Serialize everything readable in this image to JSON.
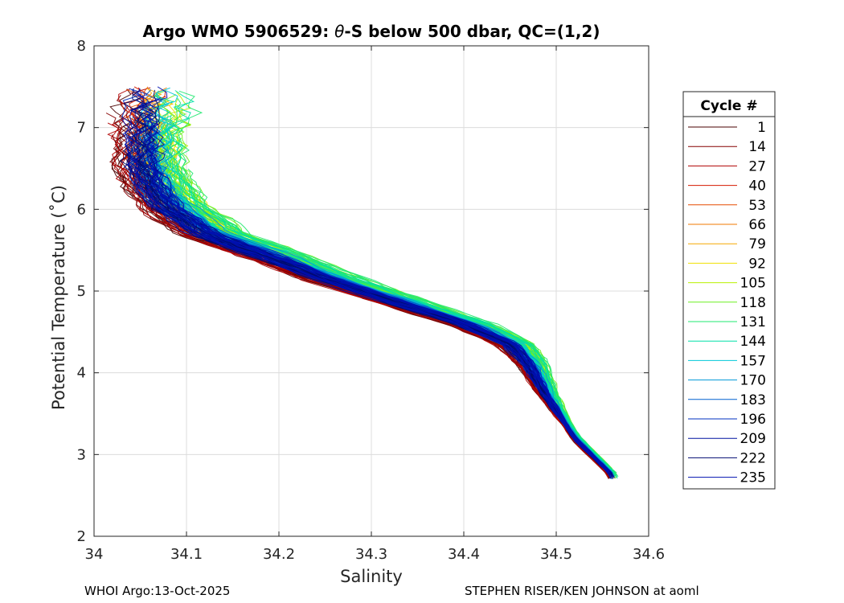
{
  "chart_data": {
    "type": "line",
    "title_prefix": "Argo WMO 5906529: ",
    "title_theta": "θ",
    "title_suffix": "-S below 500 dbar,  QC=(1,2)",
    "xlabel": "Salinity",
    "ylabel": "Potential Temperature (˚C)",
    "xlim": [
      34.0,
      34.6
    ],
    "ylim": [
      2,
      8
    ],
    "xticks": [
      34,
      34.1,
      34.2,
      34.3,
      34.4,
      34.5,
      34.6
    ],
    "xtick_labels": [
      "34",
      "34.1",
      "34.2",
      "34.3",
      "34.4",
      "34.5",
      "34.6"
    ],
    "yticks": [
      2,
      3,
      4,
      5,
      6,
      7,
      8
    ],
    "ytick_labels": [
      "2",
      "3",
      "4",
      "5",
      "6",
      "7",
      "8"
    ],
    "grid": true,
    "legend_title": "Cycle #",
    "legend_position": "right-outside",
    "legend": [
      {
        "label": "1",
        "color": "#4a0000"
      },
      {
        "label": "14",
        "color": "#860000"
      },
      {
        "label": "27",
        "color": "#b00000"
      },
      {
        "label": "40",
        "color": "#d41a00"
      },
      {
        "label": "53",
        "color": "#e64a00"
      },
      {
        "label": "66",
        "color": "#f07800"
      },
      {
        "label": "79",
        "color": "#f5a800"
      },
      {
        "label": "92",
        "color": "#f0e000"
      },
      {
        "label": "105",
        "color": "#b8f000"
      },
      {
        "label": "118",
        "color": "#6cf020"
      },
      {
        "label": "131",
        "color": "#20e870"
      },
      {
        "label": "144",
        "color": "#00e0a8"
      },
      {
        "label": "157",
        "color": "#00c8d8"
      },
      {
        "label": "170",
        "color": "#0098d8"
      },
      {
        "label": "183",
        "color": "#0060d0"
      },
      {
        "label": "196",
        "color": "#0030c0"
      },
      {
        "label": "209",
        "color": "#0010a0"
      },
      {
        "label": "222",
        "color": "#000a70"
      },
      {
        "label": "235",
        "color": "#0010b0"
      }
    ],
    "base_curve": [
      {
        "s": 34.56,
        "t": 2.75
      },
      {
        "s": 34.52,
        "t": 3.2
      },
      {
        "s": 34.49,
        "t": 3.7
      },
      {
        "s": 34.47,
        "t": 4.1
      },
      {
        "s": 34.45,
        "t": 4.35
      },
      {
        "s": 34.4,
        "t": 4.6
      },
      {
        "s": 34.33,
        "t": 4.85
      },
      {
        "s": 34.25,
        "t": 5.15
      },
      {
        "s": 34.18,
        "t": 5.45
      },
      {
        "s": 34.12,
        "t": 5.7
      },
      {
        "s": 34.08,
        "t": 6.0
      },
      {
        "s": 34.06,
        "t": 6.3
      },
      {
        "s": 34.05,
        "t": 6.55
      }
    ]
  },
  "footer": {
    "left": "WHOI Argo:13-Oct-2025",
    "right": "STEPHEN RISER/KEN JOHNSON at aoml"
  }
}
